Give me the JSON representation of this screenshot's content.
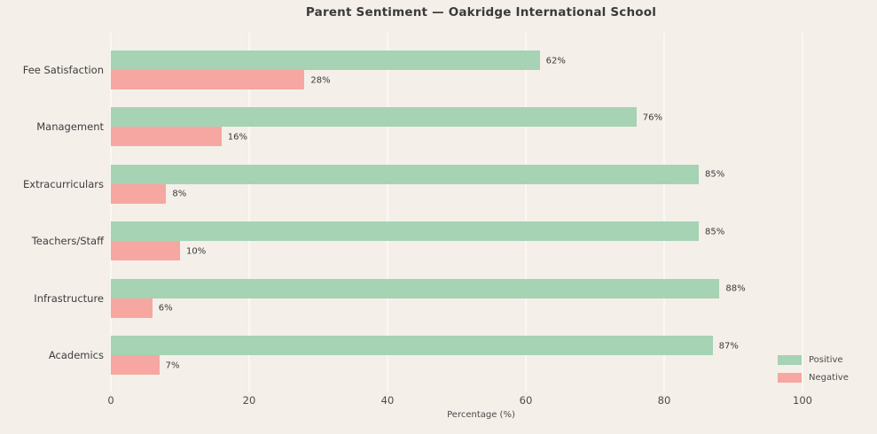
{
  "figure": {
    "background": "#f4efe9",
    "gridline_color": "#fbf8f3"
  },
  "chart_data": {
    "type": "bar",
    "orientation": "horizontal",
    "title": "Parent Sentiment — Oakridge International School",
    "xlabel": "Percentage (%)",
    "ylabel": "",
    "categories": [
      "Fee Satisfaction",
      "Management",
      "Extracurriculars",
      "Teachers/Staff",
      "Infrastructure",
      "Academics"
    ],
    "series": [
      {
        "name": "Positive",
        "color": "#a5d3b4",
        "values": [
          62,
          76,
          85,
          85,
          88,
          87
        ],
        "labels": [
          "62%",
          "76%",
          "85%",
          "85%",
          "88%",
          "87%"
        ]
      },
      {
        "name": "Negative",
        "color": "#f6a7a1",
        "values": [
          28,
          16,
          8,
          10,
          6,
          7
        ],
        "labels": [
          "28%",
          "16%",
          "8%",
          "10%",
          "6%",
          "7%"
        ]
      }
    ],
    "xlim": [
      0,
      100
    ],
    "xticks": [
      0,
      20,
      40,
      60,
      80,
      100
    ],
    "xtick_labels": [
      "0",
      "20",
      "40",
      "60",
      "80",
      "100"
    ],
    "grid": "vertical",
    "legend": {
      "position": "lower-right-outside",
      "entries": [
        "Positive",
        "Negative"
      ]
    }
  }
}
